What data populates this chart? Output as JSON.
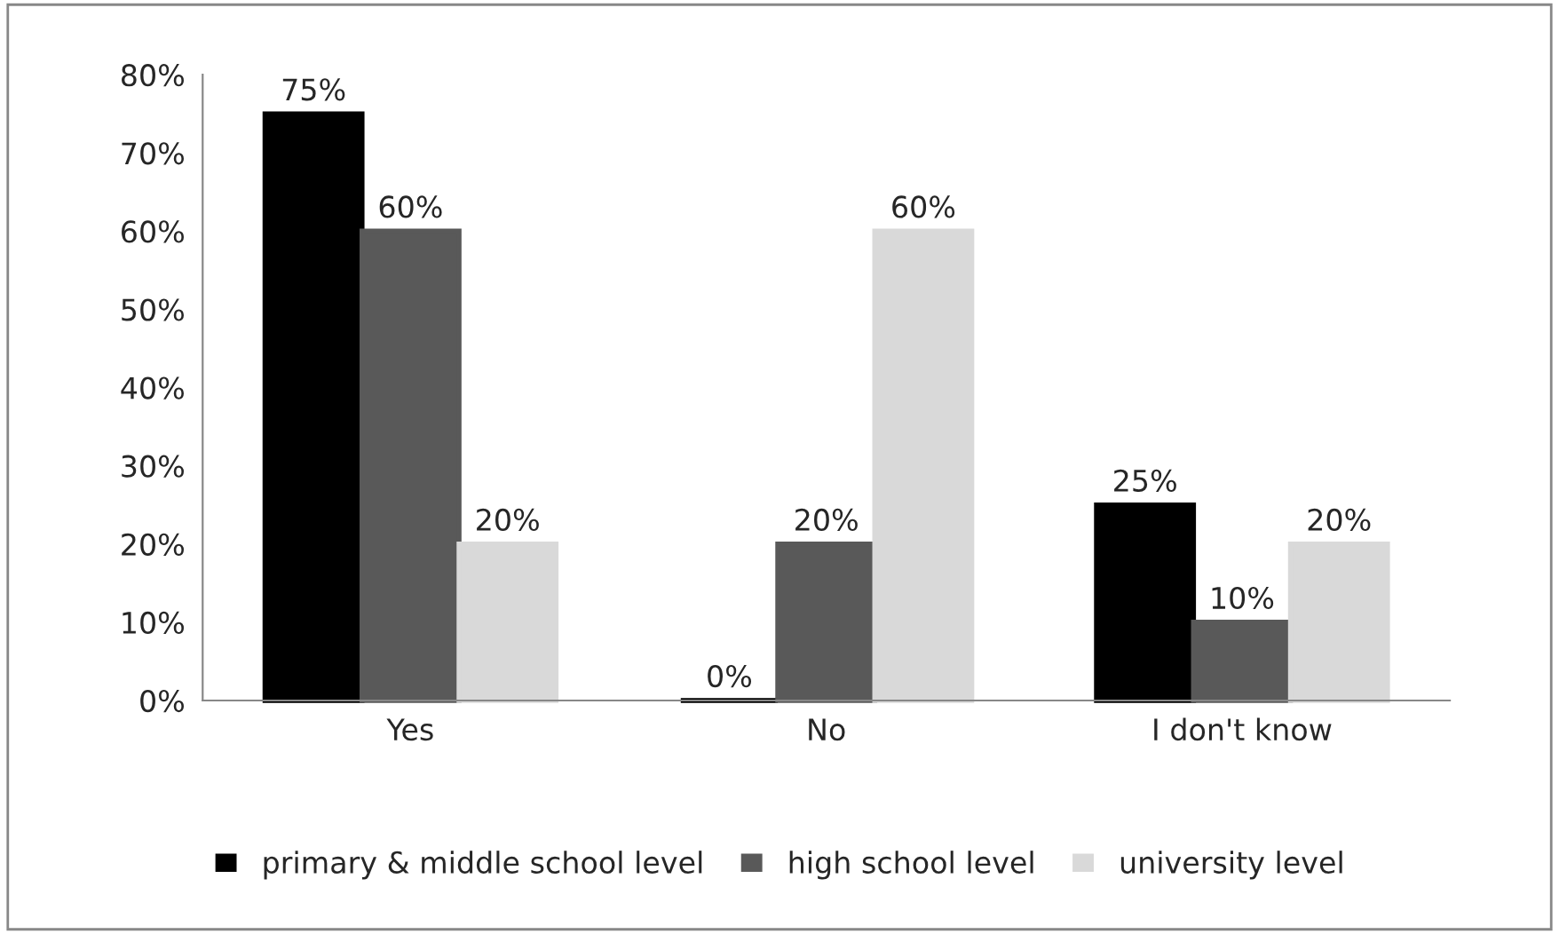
{
  "chart_data": {
    "type": "bar",
    "categories": [
      "Yes",
      "No",
      "I don't know"
    ],
    "series": [
      {
        "name": "primary & middle school level",
        "color": "#000000",
        "values": [
          75,
          0,
          25
        ],
        "value_labels": [
          "75%",
          "0%",
          "25%"
        ]
      },
      {
        "name": "high school level",
        "color": "#595959",
        "values": [
          60,
          20,
          10
        ],
        "value_labels": [
          "60%",
          "20%",
          "10%"
        ]
      },
      {
        "name": "university level",
        "color": "#d9d9d9",
        "values": [
          20,
          60,
          20
        ],
        "value_labels": [
          "20%",
          "60%",
          "20%"
        ]
      }
    ],
    "ylim": [
      0,
      80
    ],
    "yticks": [
      {
        "value": 0,
        "label": "0%"
      },
      {
        "value": 10,
        "label": "10%"
      },
      {
        "value": 20,
        "label": "20%"
      },
      {
        "value": 30,
        "label": "30%"
      },
      {
        "value": 40,
        "label": "40%"
      },
      {
        "value": 50,
        "label": "50%"
      },
      {
        "value": 60,
        "label": "60%"
      },
      {
        "value": 70,
        "label": "70%"
      },
      {
        "value": 80,
        "label": "80%"
      }
    ],
    "grid": false,
    "legend": "bottom"
  }
}
